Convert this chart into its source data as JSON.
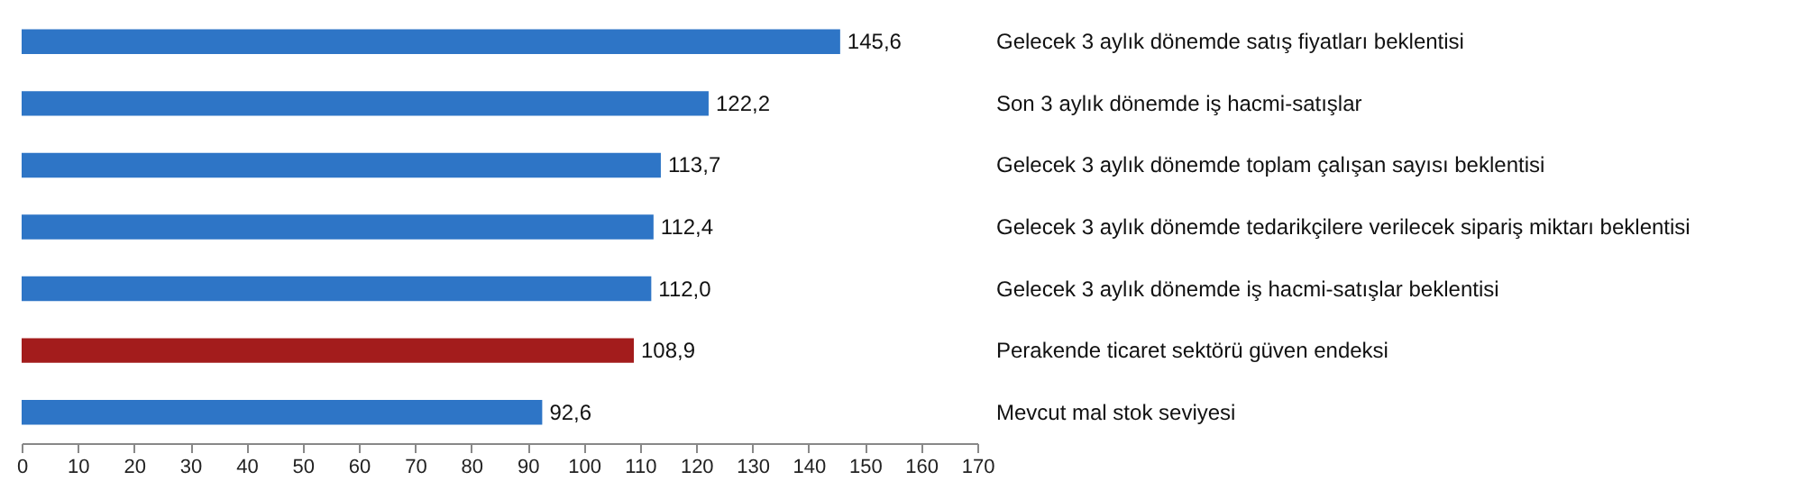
{
  "chart_data": {
    "type": "bar",
    "orientation": "horizontal",
    "categories": [
      "Gelecek 3 aylık dönemde satış fiyatları beklentisi",
      "Son 3 aylık dönemde iş hacmi-satışlar",
      "Gelecek 3 aylık dönemde toplam çalışan sayısı beklentisi",
      "Gelecek 3 aylık dönemde tedarikçilere verilecek sipariş miktarı beklentisi",
      "Gelecek 3 aylık dönemde iş hacmi-satışlar beklentisi",
      "Perakende ticaret sektörü güven endeksi",
      "Mevcut mal stok seviyesi"
    ],
    "values": [
      145.6,
      122.2,
      113.7,
      112.4,
      112.0,
      108.9,
      92.6
    ],
    "colors": [
      "#2e75c6",
      "#2e75c6",
      "#2e75c6",
      "#2e75c6",
      "#2e75c6",
      "#a31c1c",
      "#2e75c6"
    ],
    "value_labels": [
      "145,6",
      "122,2",
      "113,7",
      "112,4",
      "112,0",
      "108,9",
      "92,6"
    ],
    "xlim": [
      0,
      170
    ],
    "xticks": [
      0,
      10,
      20,
      30,
      40,
      50,
      60,
      70,
      80,
      90,
      100,
      110,
      120,
      130,
      140,
      150,
      160,
      170
    ],
    "grid": false
  }
}
